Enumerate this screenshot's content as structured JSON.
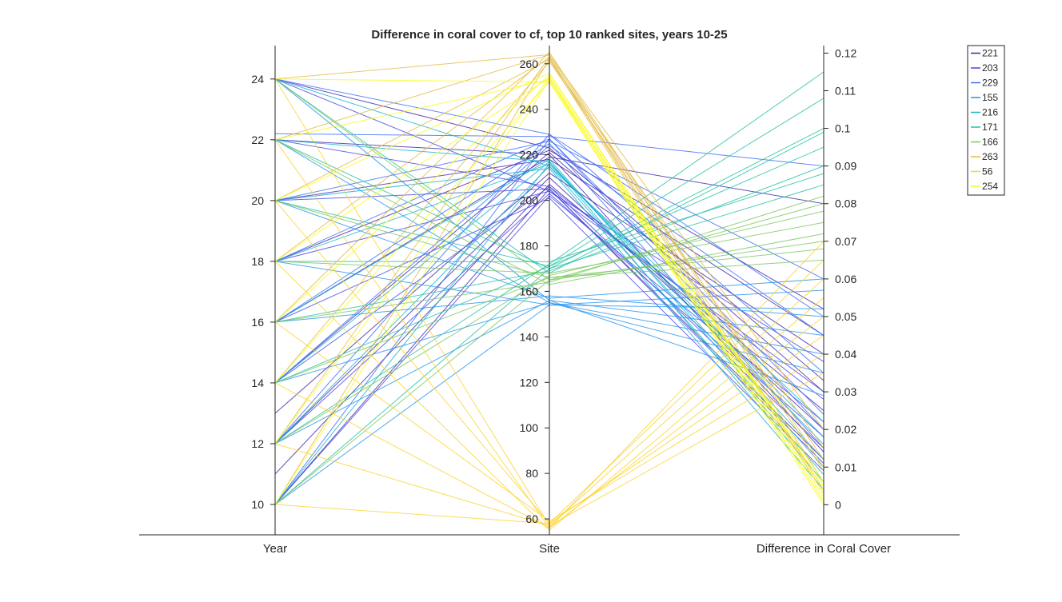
{
  "chart_data": {
    "type": "parallel-coordinates",
    "title": "Difference in coral cover to cf, top 10 ranked sites, years 10-25",
    "axes": [
      {
        "name": "Year",
        "label": "Year",
        "range": [
          9,
          25.1
        ],
        "ticks": [
          10,
          12,
          14,
          16,
          18,
          20,
          22,
          24
        ],
        "tick_side": "left"
      },
      {
        "name": "Site",
        "label": "Site",
        "range": [
          53,
          268
        ],
        "ticks": [
          60,
          80,
          100,
          120,
          140,
          160,
          180,
          200,
          220,
          240,
          260
        ],
        "tick_side": "left"
      },
      {
        "name": "Difference in Coral Cover",
        "label": "Difference in Coral Cover",
        "range": [
          -0.008,
          0.122
        ],
        "ticks": [
          0,
          0.01,
          0.02,
          0.03,
          0.04,
          0.05,
          0.06,
          0.07,
          0.08,
          0.09,
          0.1,
          0.11,
          0.12
        ],
        "tick_labels": [
          "0",
          "0.01",
          "0.02",
          "0.03",
          "0.04",
          "0.05",
          "0.06",
          "0.07",
          "0.08",
          "0.09",
          "0.1",
          "0.11",
          "0.12"
        ],
        "tick_side": "right"
      }
    ],
    "legend": {
      "placement": "top-right",
      "entries": [
        {
          "label": "221",
          "color": "#3e26a8"
        },
        {
          "label": "203",
          "color": "#4745e6"
        },
        {
          "label": "229",
          "color": "#3a6cf9"
        },
        {
          "label": "155",
          "color": "#2493ef"
        },
        {
          "label": "216",
          "color": "#14b2d2"
        },
        {
          "label": "171",
          "color": "#24c0a4"
        },
        {
          "label": "166",
          "color": "#78c75e"
        },
        {
          "label": "263",
          "color": "#e4ba45"
        },
        {
          "label": "56",
          "color": "#fbd32e"
        },
        {
          "label": "254",
          "color": "#f9fb15"
        }
      ]
    },
    "series": [
      {
        "name": "221",
        "lines": [
          [
            10,
            205,
            0.012
          ],
          [
            12,
            210,
            0.02
          ],
          [
            14,
            221,
            0.03
          ],
          [
            16,
            219,
            0.08
          ],
          [
            18,
            222,
            0.052
          ],
          [
            20,
            218,
            0.045
          ],
          [
            22,
            220,
            0.014
          ],
          [
            24,
            223,
            0.033
          ],
          [
            11,
            207,
            0.025
          ],
          [
            13,
            212,
            0.04
          ]
        ]
      },
      {
        "name": "203",
        "lines": [
          [
            12,
            203,
            0.018
          ],
          [
            14,
            206,
            0.028
          ],
          [
            16,
            201,
            0.009
          ],
          [
            20,
            205,
            0.011
          ],
          [
            24,
            204,
            0.038
          ],
          [
            10,
            202,
            0.022
          ],
          [
            22,
            206,
            0.015
          ],
          [
            18,
            204,
            0.03
          ]
        ]
      },
      {
        "name": "229",
        "lines": [
          [
            22.2,
            228,
            0.09
          ],
          [
            24,
            229,
            0.05
          ],
          [
            20,
            226,
            0.06
          ],
          [
            10,
            227,
            0.02
          ],
          [
            16,
            225,
            0.015
          ],
          [
            12,
            229,
            0.035
          ],
          [
            14,
            224,
            0.045
          ],
          [
            18,
            227,
            0.024
          ]
        ]
      },
      {
        "name": "155",
        "lines": [
          [
            24,
            156,
            0.045
          ],
          [
            22,
            155,
            0.035
          ],
          [
            20,
            157,
            0.06
          ],
          [
            18,
            154,
            0.057
          ],
          [
            16,
            158,
            0.05
          ],
          [
            14,
            155,
            0.04
          ],
          [
            12,
            156,
            0.029
          ],
          [
            10,
            154,
            0.052
          ]
        ]
      },
      {
        "name": "216",
        "lines": [
          [
            10,
            216,
            0.016
          ],
          [
            12,
            215,
            0.022
          ],
          [
            14,
            217,
            0.006
          ],
          [
            16,
            218,
            0.01
          ],
          [
            18,
            216,
            0.018
          ],
          [
            20,
            214,
            0.004
          ],
          [
            22,
            217,
            0.012
          ],
          [
            24,
            215,
            0.008
          ]
        ]
      },
      {
        "name": "171",
        "lines": [
          [
            10,
            170,
            0.1
          ],
          [
            12,
            172,
            0.115
          ],
          [
            14,
            171,
            0.108
          ],
          [
            16,
            169,
            0.09
          ],
          [
            18,
            173,
            0.088
          ],
          [
            20,
            171,
            0.095
          ],
          [
            22,
            170,
            0.085
          ],
          [
            24,
            168,
            0.099
          ]
        ]
      },
      {
        "name": "166",
        "lines": [
          [
            10,
            165,
            0.07
          ],
          [
            12,
            167,
            0.078
          ],
          [
            14,
            166,
            0.065
          ],
          [
            16,
            164,
            0.082
          ],
          [
            18,
            168,
            0.075
          ],
          [
            20,
            166,
            0.068
          ],
          [
            22,
            163,
            0.072
          ],
          [
            24,
            165,
            0.08
          ]
        ]
      },
      {
        "name": "263",
        "lines": [
          [
            22,
            264,
            0.02
          ],
          [
            20,
            262,
            0.015
          ],
          [
            18,
            263,
            0.004
          ],
          [
            16,
            265,
            0.01
          ],
          [
            14,
            261,
            0.012
          ],
          [
            12,
            263,
            0.006
          ],
          [
            24,
            264,
            0.009
          ],
          [
            10,
            262,
            0.003
          ]
        ]
      },
      {
        "name": "56",
        "lines": [
          [
            24,
            57,
            0.06
          ],
          [
            22,
            56,
            0.05
          ],
          [
            20,
            58,
            0.065
          ],
          [
            18,
            55,
            0.055
          ],
          [
            16,
            59,
            0.04
          ],
          [
            14,
            56,
            0.07
          ],
          [
            12,
            57,
            0.035
          ],
          [
            10,
            58,
            0.045
          ]
        ]
      },
      {
        "name": "254",
        "lines": [
          [
            10,
            253,
            0.001
          ],
          [
            12,
            254,
            0.003
          ],
          [
            14,
            252,
            0.0
          ],
          [
            16,
            255,
            0.005
          ],
          [
            18,
            254,
            0.002
          ],
          [
            20,
            256,
            0.004
          ],
          [
            22,
            253,
            0.006
          ],
          [
            24,
            252,
            0.001
          ]
        ]
      }
    ]
  }
}
